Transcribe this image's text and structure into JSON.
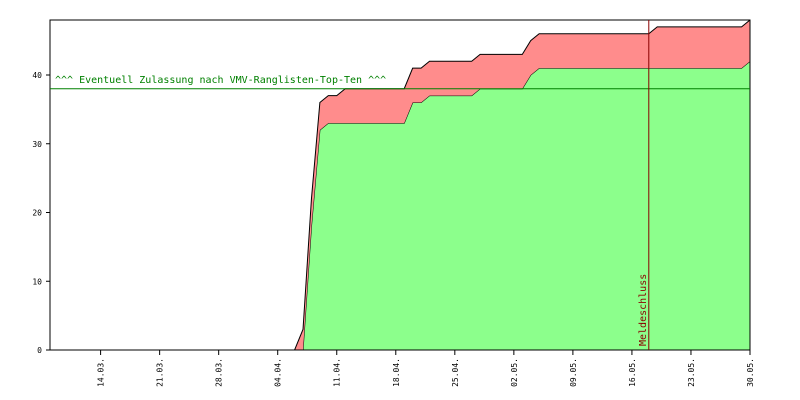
{
  "chart_data": {
    "type": "stacked_area",
    "x": [
      "08.03.",
      "06.04.",
      "07.04.",
      "08.04.",
      "09.04.",
      "10.04.",
      "11.04.",
      "12.04.",
      "19.04.",
      "20.04.",
      "21.04.",
      "22.04.",
      "27.04.",
      "28.04.",
      "03.05.",
      "04.05.",
      "05.05.",
      "18.05.",
      "19.05.",
      "29.05.",
      "30.05."
    ],
    "series": [
      {
        "color": "#8cff8c",
        "values": [
          0,
          0,
          0,
          18,
          32,
          33,
          33,
          33,
          33,
          36,
          36,
          37,
          37,
          38,
          38,
          40,
          41,
          41,
          41,
          41,
          42
        ]
      },
      {
        "color": "#ff8c8c",
        "values": [
          0,
          0,
          3,
          4,
          4,
          4,
          4,
          5,
          5,
          5,
          5,
          5,
          5,
          5,
          5,
          5,
          5,
          5,
          6,
          6,
          6
        ]
      }
    ],
    "xlim": [
      "08.03.",
      "30.05."
    ],
    "xticks": [
      "14.03.",
      "21.03.",
      "28.03.",
      "04.04.",
      "11.04.",
      "18.04.",
      "25.04.",
      "02.05.",
      "09.05.",
      "16.05.",
      "23.05.",
      "30.05."
    ],
    "ylim": [
      0,
      48
    ],
    "yticks": [
      0,
      10,
      20,
      30,
      40
    ],
    "hlines": [
      {
        "value": 38,
        "label": "^^^ Eventuell Zulassung nach VMV-Ranglisten-Top-Ten ^^^",
        "color": "#008000"
      }
    ],
    "vlines": [
      {
        "x": "18.05.",
        "label": "Meldeschluss",
        "color": "#8b0000"
      }
    ]
  }
}
